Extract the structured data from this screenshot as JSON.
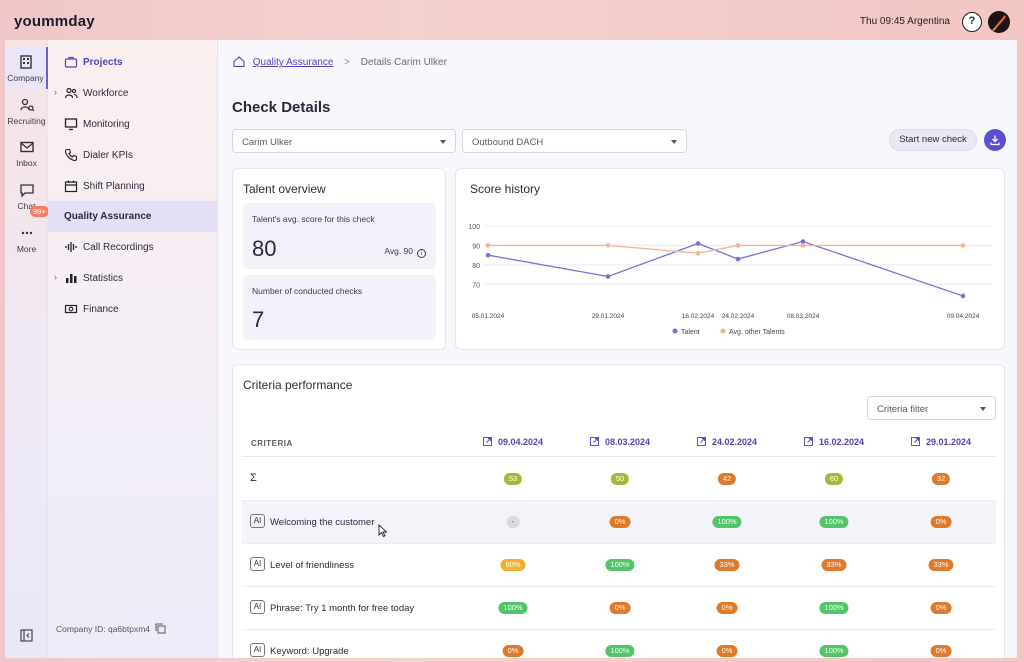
{
  "header": {
    "logo": "yoummday",
    "clock": "Thu 09:45 Argentina",
    "help_label": "?"
  },
  "rail": {
    "items": [
      {
        "label": "Company",
        "icon": "building-icon"
      },
      {
        "label": "Recruiting",
        "icon": "user-search-icon"
      },
      {
        "label": "Inbox",
        "icon": "mail-icon"
      },
      {
        "label": "Chat",
        "icon": "chat-icon"
      },
      {
        "label": "More",
        "icon": "more-icon"
      }
    ],
    "chat_badge": "99+"
  },
  "nav": {
    "items": [
      {
        "label": "Projects",
        "icon": "briefcase-icon"
      },
      {
        "label": "Workforce",
        "icon": "people-icon"
      },
      {
        "label": "Monitoring",
        "icon": "monitor-icon"
      },
      {
        "label": "Dialer KPIs",
        "icon": "phone-icon"
      },
      {
        "label": "Shift Planning",
        "icon": "calendar-icon"
      },
      {
        "label": "Quality Assurance",
        "icon": ""
      },
      {
        "label": "Call Recordings",
        "icon": "waveform-icon"
      },
      {
        "label": "Statistics",
        "icon": "bar-chart-icon"
      },
      {
        "label": "Finance",
        "icon": "cash-icon"
      }
    ],
    "company_id": "Company ID: qa6btpxm4"
  },
  "breadcrumb": {
    "link": "Quality Assurance",
    "current": "Details Carim Ulker"
  },
  "page_title": "Check Details",
  "selects": {
    "talent": "Carim Ulker",
    "project": "Outbound DACH"
  },
  "actions": {
    "start_new_check": "Start new check"
  },
  "talent_overview": {
    "title": "Talent overview",
    "avg_label": "Talent's avg. score for this check",
    "avg_value": "80",
    "avg_other": "Avg. 90",
    "checks_label": "Number of conducted checks",
    "checks_value": "7"
  },
  "score_history": {
    "title": "Score history",
    "legend_talent": "Talent",
    "legend_other": "Avg. other Talents"
  },
  "chart_data": {
    "type": "line",
    "title": "Score history",
    "x": [
      "05.01.2024",
      "29.01.2024",
      "16.02.2024",
      "24.02.2024",
      "08.03.2024",
      "09.04.2024"
    ],
    "x_positions": [
      0,
      24,
      42,
      50,
      63,
      95
    ],
    "yticks": [
      70,
      80,
      90,
      100
    ],
    "ylim": [
      65,
      100
    ],
    "series": [
      {
        "name": "Talent",
        "color": "#7b6fd8",
        "values": [
          85,
          74,
          91,
          83,
          92,
          64
        ]
      },
      {
        "name": "Avg. other Talents",
        "color": "#f4b48f",
        "values": [
          90,
          90,
          86,
          90,
          90,
          90
        ]
      }
    ],
    "legend": "bottom"
  },
  "criteria": {
    "title": "Criteria performance",
    "filter_placeholder": "Criteria filter",
    "header": "CRITERIA",
    "dates": [
      "09.04.2024",
      "08.03.2024",
      "24.02.2024",
      "16.02.2024",
      "29.01.2024"
    ],
    "rows": [
      {
        "label": "",
        "type": "sigma",
        "symbol": "Σ",
        "values": [
          "53",
          "50",
          "42",
          "60",
          "32"
        ]
      },
      {
        "label": "Welcoming the customer",
        "type": "ai",
        "values": [
          "-",
          "0%",
          "100%",
          "100%",
          "0%"
        ]
      },
      {
        "label": "Level of friendliness",
        "type": "ai",
        "values": [
          "60%",
          "100%",
          "33%",
          "33%",
          "33%"
        ]
      },
      {
        "label": "Phrase: Try 1 month for free today",
        "type": "ai",
        "values": [
          "100%",
          "0%",
          "0%",
          "100%",
          "0%"
        ]
      },
      {
        "label": "Keyword: Upgrade",
        "type": "ai",
        "values": [
          "0%",
          "100%",
          "0%",
          "100%",
          "0%"
        ]
      }
    ],
    "ai_tag": "AI"
  },
  "colors": {
    "accent": "#5a4fd1",
    "pill_olive": "#a7b934",
    "pill_orange": "#e07a2a",
    "pill_green": "#52c46a",
    "pill_amber": "#f0b12a",
    "pill_grey": "#d9d9de"
  }
}
